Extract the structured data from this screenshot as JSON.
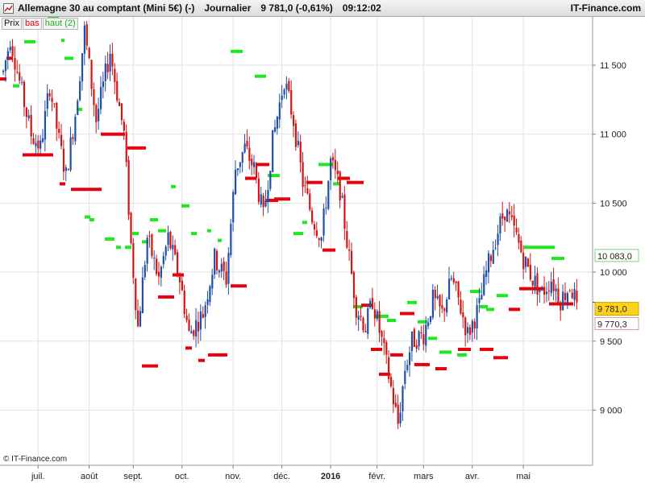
{
  "header": {
    "instrument": "Allemagne 30 au comptant (Mini 5€) (-)",
    "period": "Journalier",
    "last_change": "9 781,0 (-0,61%)",
    "time": "09:12:02",
    "brand": "IT-Finance.com"
  },
  "legend": {
    "prix": "Prix",
    "bas": "bas",
    "haut": "haut (2)"
  },
  "copyright": "© IT-Finance.com",
  "colors": {
    "up": "#1f4fa8",
    "down": "#d11414",
    "haut": "#1ee81e",
    "bas": "#e8000c",
    "last_badge": "#ffd21a"
  },
  "chart_data": {
    "type": "candlestick",
    "ylim": [
      8600,
      11850
    ],
    "ytick_values": [
      9000,
      9500,
      10000,
      10500,
      11000,
      11500
    ],
    "ytick_labels": [
      "9 000",
      "9 500",
      "10 000",
      "10 500",
      "11 000",
      "11 500"
    ],
    "xtick_labels": [
      "juil.",
      "août",
      "sept.",
      "oct.",
      "nov.",
      "déc.",
      "2016",
      "févr.",
      "mars",
      "avr.",
      "mai"
    ],
    "xtick_bar_index": [
      15,
      37,
      56,
      77,
      99,
      120,
      141,
      161,
      181,
      202,
      224
    ],
    "num_bars": 248,
    "last_price_label": "9 781,0",
    "last_price": 9781,
    "level_labels": [
      {
        "label": "10 083,0",
        "value": 10083,
        "kind": "haut"
      },
      {
        "label": "9 770,3",
        "value": 9770.3,
        "kind": "bas"
      }
    ],
    "price_path": [
      [
        0,
        11450
      ],
      [
        3,
        11700
      ],
      [
        8,
        11300
      ],
      [
        12,
        11000
      ],
      [
        16,
        10900
      ],
      [
        20,
        11350
      ],
      [
        24,
        10950
      ],
      [
        27,
        10700
      ],
      [
        31,
        11150
      ],
      [
        35,
        11750
      ],
      [
        40,
        11100
      ],
      [
        46,
        11600
      ],
      [
        52,
        11000
      ],
      [
        55,
        10200
      ],
      [
        58,
        9600
      ],
      [
        62,
        10250
      ],
      [
        67,
        9950
      ],
      [
        71,
        10250
      ],
      [
        76,
        9950
      ],
      [
        80,
        9550
      ],
      [
        86,
        9700
      ],
      [
        91,
        10100
      ],
      [
        96,
        9950
      ],
      [
        100,
        10750
      ],
      [
        104,
        10900
      ],
      [
        108,
        10750
      ],
      [
        112,
        10400
      ],
      [
        116,
        10950
      ],
      [
        121,
        11400
      ],
      [
        125,
        11100
      ],
      [
        129,
        10650
      ],
      [
        133,
        10400
      ],
      [
        137,
        10250
      ],
      [
        141,
        10800
      ],
      [
        145,
        10600
      ],
      [
        149,
        10100
      ],
      [
        152,
        9750
      ],
      [
        156,
        9600
      ],
      [
        159,
        9800
      ],
      [
        163,
        9500
      ],
      [
        166,
        9250
      ],
      [
        170,
        8900
      ],
      [
        173,
        9300
      ],
      [
        176,
        9500
      ],
      [
        181,
        9550
      ],
      [
        185,
        9800
      ],
      [
        189,
        9700
      ],
      [
        193,
        9950
      ],
      [
        196,
        9800
      ],
      [
        200,
        9550
      ],
      [
        205,
        9750
      ],
      [
        208,
        10000
      ],
      [
        212,
        10250
      ],
      [
        216,
        10450
      ],
      [
        220,
        10300
      ],
      [
        224,
        10100
      ],
      [
        228,
        9950
      ],
      [
        232,
        9850
      ],
      [
        236,
        9950
      ],
      [
        240,
        9800
      ],
      [
        244,
        9900
      ],
      [
        247,
        9781
      ]
    ],
    "haut_segments": [
      [
        16,
        24,
        11350
      ],
      [
        30,
        44,
        11670
      ],
      [
        59,
        73,
        11850
      ],
      [
        76,
        80,
        11680
      ],
      [
        80,
        91,
        11550
      ],
      [
        95,
        102,
        11180
      ],
      [
        105,
        112,
        10400
      ],
      [
        111,
        117,
        10380
      ],
      [
        130,
        142,
        10240
      ],
      [
        144,
        150,
        10180
      ],
      [
        155,
        163,
        10180
      ],
      [
        164,
        172,
        10280
      ],
      [
        176,
        184,
        10220
      ],
      [
        186,
        196,
        10380
      ],
      [
        196,
        206,
        10300
      ],
      [
        212,
        218,
        10620
      ],
      [
        225,
        235,
        10480
      ],
      [
        237,
        244,
        10280
      ],
      [
        257,
        262,
        10300
      ],
      [
        270,
        275,
        10230
      ],
      [
        286,
        301,
        11600
      ],
      [
        316,
        330,
        11420
      ],
      [
        332,
        347,
        10700
      ],
      [
        364,
        376,
        10280
      ],
      [
        375,
        381,
        10360
      ],
      [
        395,
        413,
        10780
      ],
      [
        413,
        422,
        10640
      ],
      [
        438,
        450,
        9750
      ],
      [
        465,
        482,
        9680
      ],
      [
        480,
        491,
        9650
      ],
      [
        505,
        517,
        9780
      ],
      [
        518,
        530,
        9640
      ],
      [
        531,
        542,
        9520
      ],
      [
        545,
        560,
        9420
      ],
      [
        567,
        579,
        9400
      ],
      [
        583,
        596,
        9860
      ],
      [
        595,
        605,
        9750
      ],
      [
        603,
        613,
        9730
      ],
      [
        616,
        630,
        9830
      ],
      [
        650,
        688,
        10180
      ],
      [
        684,
        700,
        10100
      ]
    ],
    "bas_segments": [
      [
        0,
        8,
        11400
      ],
      [
        8,
        16,
        11550
      ],
      [
        28,
        44,
        10850
      ],
      [
        44,
        66,
        10850
      ],
      [
        74,
        81,
        10640
      ],
      [
        88,
        126,
        10600
      ],
      [
        125,
        155,
        11000
      ],
      [
        158,
        181,
        10900
      ],
      [
        176,
        196,
        9320
      ],
      [
        196,
        216,
        9820
      ],
      [
        214,
        228,
        9980
      ],
      [
        230,
        238,
        9450
      ],
      [
        246,
        254,
        9360
      ],
      [
        258,
        282,
        9400
      ],
      [
        286,
        306,
        9900
      ],
      [
        304,
        318,
        10680
      ],
      [
        318,
        334,
        10780
      ],
      [
        330,
        345,
        10520
      ],
      [
        340,
        360,
        10530
      ],
      [
        380,
        400,
        10650
      ],
      [
        400,
        416,
        10160
      ],
      [
        419,
        434,
        10680
      ],
      [
        430,
        451,
        10650
      ],
      [
        448,
        462,
        9760
      ],
      [
        460,
        474,
        9440
      ],
      [
        470,
        484,
        9260
      ],
      [
        484,
        500,
        9400
      ],
      [
        496,
        514,
        9700
      ],
      [
        514,
        533,
        9330
      ],
      [
        540,
        554,
        9300
      ],
      [
        568,
        584,
        9440
      ],
      [
        595,
        612,
        9440
      ],
      [
        612,
        630,
        9380
      ],
      [
        631,
        645,
        9730
      ],
      [
        644,
        676,
        9880
      ],
      [
        681,
        700,
        9770
      ],
      [
        698,
        711,
        9770
      ]
    ]
  }
}
